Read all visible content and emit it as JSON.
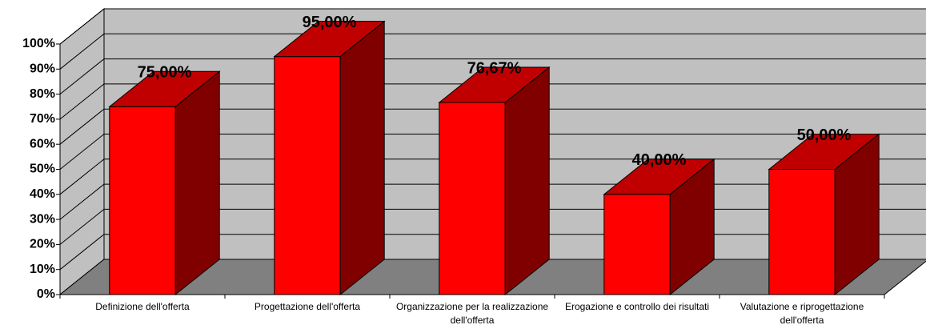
{
  "chart_data": {
    "type": "bar3d",
    "categories": [
      "Definizione dell'offerta",
      "Progettazione dell'offerta",
      "Organizzazione per la realizzazione dell'offerta",
      "Erogazione e controllo dei risultati",
      "Valutazione e riprogettazione dell'offerta"
    ],
    "values": [
      75,
      95,
      76.67,
      40,
      50
    ],
    "value_labels": [
      "75,00%",
      "95,00%",
      "76,67%",
      "40,00%",
      "50,00%"
    ],
    "color": "#ff0000",
    "ylim": [
      0,
      100
    ],
    "yticks": [
      {
        "value": 0,
        "label": "0%"
      },
      {
        "value": 10,
        "label": "10%"
      },
      {
        "value": 20,
        "label": "20%"
      },
      {
        "value": 30,
        "label": "30%"
      },
      {
        "value": 40,
        "label": "40%"
      },
      {
        "value": 50,
        "label": "50%"
      },
      {
        "value": 60,
        "label": "60%"
      },
      {
        "value": 70,
        "label": "70%"
      },
      {
        "value": 80,
        "label": "80%"
      },
      {
        "value": 90,
        "label": "90%"
      },
      {
        "value": 100,
        "label": "100%"
      }
    ],
    "grid": true
  }
}
